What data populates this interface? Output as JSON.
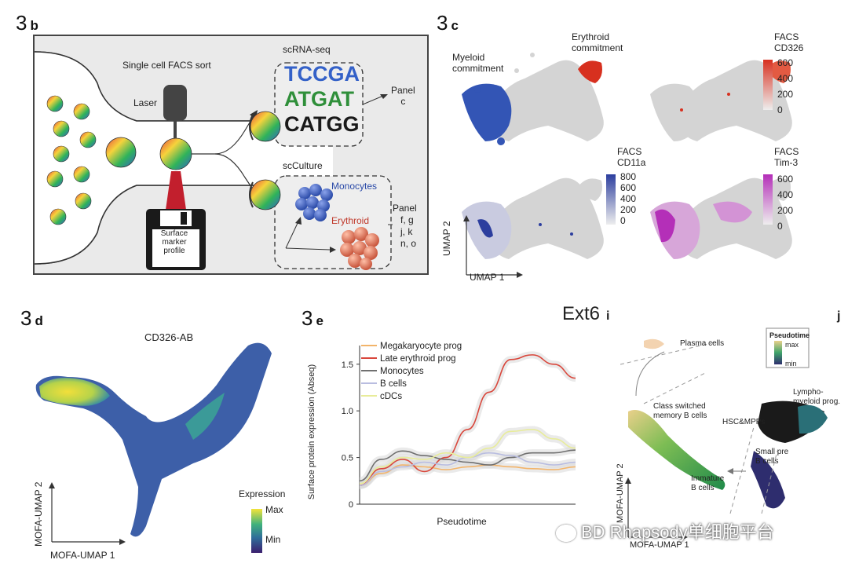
{
  "panel_b": {
    "num": "3",
    "letter": "b",
    "facs_title": "Single cell FACS sort",
    "laser": "Laser",
    "scrnaseq": "scRNA-seq",
    "dna_rows": [
      "TCCGA",
      "ATGAT",
      "CATGG"
    ],
    "panel_c_ref": [
      "Panel",
      "c"
    ],
    "scculture": "scCulture",
    "monocytes": "Monocytes",
    "erythroid": "Erythroid",
    "panel_list": [
      "Panel",
      "f, g",
      "j, k",
      "n, o"
    ],
    "floppy_lines": [
      "Surface",
      "marker",
      "profile"
    ]
  },
  "panel_c": {
    "num": "3",
    "letter": "c",
    "myeloid": [
      "Myeloid",
      "commitment"
    ],
    "erythroid": [
      "Erythroid",
      "commitment"
    ],
    "cd326": {
      "title": [
        "FACS",
        "CD326"
      ],
      "ticks": [
        "600",
        "400",
        "200",
        "0"
      ],
      "color": "#d7301f"
    },
    "cd11a": {
      "title": [
        "FACS",
        "CD11a"
      ],
      "ticks": [
        "800",
        "600",
        "400",
        "200",
        "0"
      ],
      "color": "#2c3e9e"
    },
    "tim3": {
      "title": [
        "FACS",
        "Tim-3"
      ],
      "ticks": [
        "600",
        "400",
        "200",
        "0"
      ],
      "color": "#b42fb8"
    },
    "umap1": "UMAP 1",
    "umap2": "UMAP 2"
  },
  "panel_d": {
    "num": "3",
    "letter": "d",
    "title": "CD326-AB",
    "xlabel": "MOFA-UMAP 1",
    "ylabel": "MOFA-UMAP 2",
    "legend_title": "Expression",
    "legend_max": "Max",
    "legend_min": "Min"
  },
  "panel_e": {
    "num": "3",
    "letter": "e"
  },
  "panel_ext6": {
    "label": "Ext6",
    "i": "i",
    "j": "j",
    "plasma": "Plasma cells",
    "class_switched": [
      "Class switched",
      "memory B cells"
    ],
    "hsc": "HSC&MPPs",
    "lympho": [
      "Lympho-",
      "myeloid prog."
    ],
    "small_pre": [
      "Small pre",
      "B cells"
    ],
    "immature": [
      "Immature",
      "B cells"
    ],
    "pseudotime": "Pseudotime",
    "pt_max": "max",
    "pt_min": "min",
    "ylabel": "MOFA-UMAP 2",
    "xlabel": "MOFA-UMAP 1"
  },
  "watermark": "BD Rhapsody单细胞平台",
  "chart_data": {
    "type": "line",
    "title": "",
    "xlabel": "Pseudotime",
    "ylabel": "Surface protein expression (Abseq)",
    "ylim": [
      0,
      1.7
    ],
    "yticks": [
      "0",
      "0.5",
      "1.0",
      "1.5"
    ],
    "ytick_values": [
      0,
      0.5,
      1.0,
      1.5
    ],
    "x": [
      0,
      0.1,
      0.2,
      0.3,
      0.4,
      0.5,
      0.6,
      0.7,
      0.8,
      0.9,
      1.0
    ],
    "series": [
      {
        "name": "Megakaryocyte prog",
        "color": "#f2b46a",
        "values": [
          0.2,
          0.33,
          0.42,
          0.4,
          0.37,
          0.4,
          0.42,
          0.4,
          0.38,
          0.37,
          0.4
        ]
      },
      {
        "name": "Late erythroid prog",
        "color": "#d9473c",
        "values": [
          0.2,
          0.38,
          0.48,
          0.35,
          0.5,
          0.8,
          1.2,
          1.55,
          1.6,
          1.5,
          1.35
        ]
      },
      {
        "name": "Monocytes",
        "color": "#707070",
        "values": [
          0.25,
          0.48,
          0.57,
          0.52,
          0.48,
          0.45,
          0.42,
          0.5,
          0.55,
          0.55,
          0.58
        ]
      },
      {
        "name": "B cells",
        "color": "#b9bde0",
        "values": [
          0.2,
          0.35,
          0.4,
          0.45,
          0.42,
          0.5,
          0.55,
          0.52,
          0.45,
          0.42,
          0.45
        ]
      },
      {
        "name": "cDCs",
        "color": "#e8ec9a",
        "values": [
          0.22,
          0.4,
          0.5,
          0.48,
          0.55,
          0.5,
          0.6,
          0.78,
          0.8,
          0.7,
          0.6
        ]
      }
    ]
  }
}
